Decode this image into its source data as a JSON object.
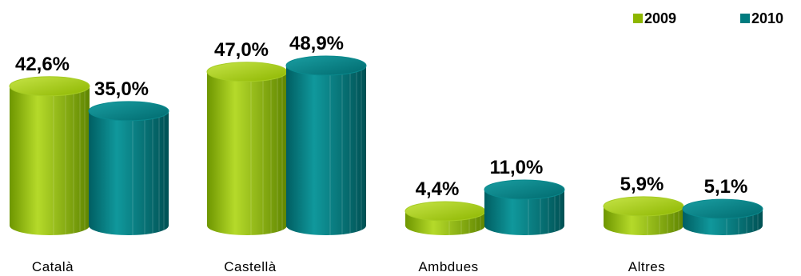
{
  "chart_data": {
    "type": "bar",
    "categories": [
      "Català",
      "Castellà",
      "Ambdues",
      "Altres"
    ],
    "series": [
      {
        "name": "2009",
        "values": [
          42.6,
          47.0,
          4.4,
          5.9
        ],
        "labels": [
          "42,6%",
          "47,0%",
          "4,4%",
          "5,9%"
        ],
        "color": "#8DB600"
      },
      {
        "name": "2010",
        "values": [
          35.0,
          48.9,
          11.0,
          5.1
        ],
        "labels": [
          "35,0%",
          "48,9%",
          "11,0%",
          "5,1%"
        ],
        "color": "#007B7F"
      }
    ],
    "ylim": [
      0,
      50
    ],
    "grid": false,
    "legend": "top-right",
    "style": "3d-cylinder"
  }
}
